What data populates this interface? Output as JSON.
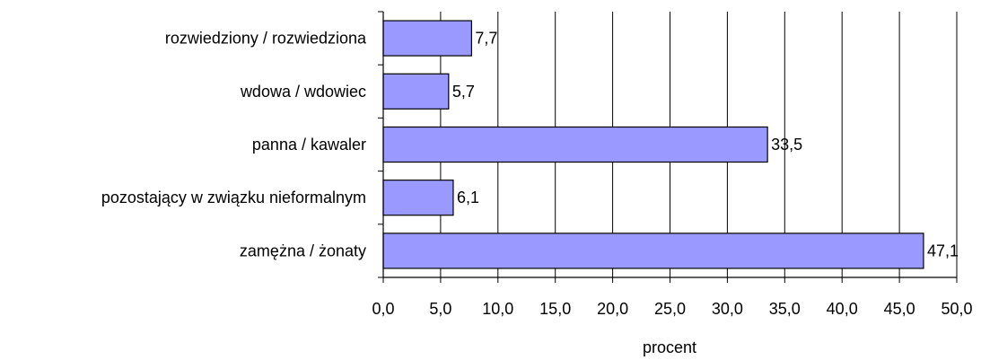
{
  "chart_data": {
    "type": "bar",
    "orientation": "horizontal",
    "categories": [
      "rozwiedziony / rozwiedziona",
      "wdowa / wdowiec",
      "panna / kawaler",
      "pozostający w związku nieformalnym",
      "zamężna / żonaty"
    ],
    "values": [
      7.7,
      5.7,
      33.5,
      6.1,
      47.1
    ],
    "data_labels": [
      "7,7",
      "5,7",
      "33,5",
      "6,1",
      "47,1"
    ],
    "title": "",
    "xlabel": "procent",
    "ylabel": "",
    "xlim": [
      0,
      50
    ],
    "x_ticks": [
      0,
      5,
      10,
      15,
      20,
      25,
      30,
      35,
      40,
      45,
      50
    ],
    "x_tick_labels": [
      "0,0",
      "5,0",
      "10,0",
      "15,0",
      "20,0",
      "25,0",
      "30,0",
      "35,0",
      "40,0",
      "45,0",
      "50,0"
    ],
    "grid": "vertical",
    "legend": "none",
    "bar_color": "#9999ff",
    "bar_edge_color": "#000000",
    "gridline_color": "#000000"
  }
}
